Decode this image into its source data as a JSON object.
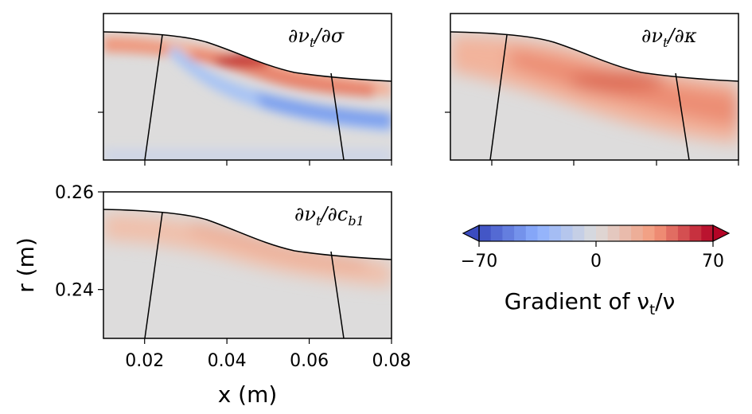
{
  "chart_data": {
    "type": "heatmap",
    "panels": [
      {
        "id": "sigma",
        "title": "∂νt/∂σ",
        "title_base": "∂ν",
        "title_sub": "t",
        "title_rest": "/∂σ",
        "title_sub2": ""
      },
      {
        "id": "kappa",
        "title": "∂νt/∂κ",
        "title_base": "∂ν",
        "title_sub": "t",
        "title_rest": "/∂κ",
        "title_sub2": ""
      },
      {
        "id": "cb1",
        "title": "∂νt/∂cb1",
        "title_base": "∂ν",
        "title_sub": "t",
        "title_rest": "/∂c",
        "title_sub2": "b1"
      }
    ],
    "xlabel": "x (m)",
    "ylabel": "r (m)",
    "xlim": [
      0.01,
      0.08
    ],
    "ylim": [
      0.23,
      0.26
    ],
    "xticks": [
      0.02,
      0.04,
      0.06,
      0.08
    ],
    "xtick_labels": [
      "0.02",
      "0.04",
      "0.06",
      "0.08"
    ],
    "yticks": [
      0.24,
      0.26
    ],
    "ytick_labels": [
      "0.24",
      "0.26"
    ],
    "colorbar": {
      "label_main": "Gradient of ν",
      "label_sub": "t",
      "label_end": "/ν",
      "min": -70,
      "max": 70,
      "ticks": [
        -70,
        0,
        70
      ],
      "tick_labels": [
        "−70",
        "0",
        "70"
      ],
      "colormap": "coolwarm",
      "extend": "both",
      "colors": {
        "neg": "#3b4cc0",
        "zero": "#dddcdc",
        "pos": "#b40426"
      }
    }
  }
}
